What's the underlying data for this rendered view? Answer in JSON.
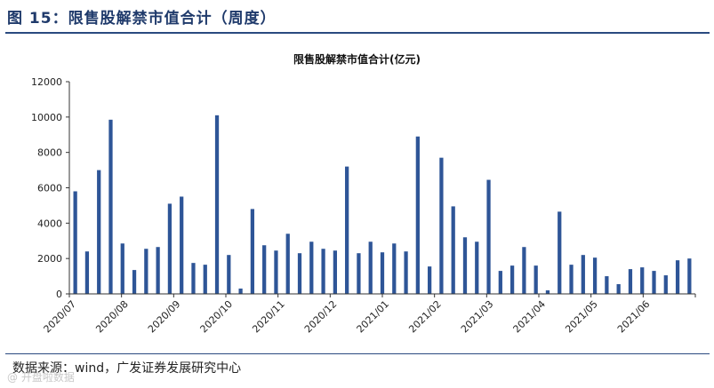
{
  "figure_title": "图 15：限售股解禁市值合计（周度）",
  "source_text": "数据来源：wind，广发证券发展研究中心",
  "watermark": "@ 开盘啦数据",
  "colors": {
    "bar": "#2e5597",
    "title": "#1f3a6b",
    "rule": "#2a4a80"
  },
  "chart_data": {
    "type": "bar",
    "title": "限售股解禁市值合计(亿元)",
    "xlabel": "",
    "ylabel": "",
    "ylim": [
      0,
      12000
    ],
    "yticks": [
      0,
      2000,
      4000,
      6000,
      8000,
      10000,
      12000
    ],
    "grid": false,
    "legend": "none",
    "month_labels": [
      "2020/07",
      "2020/08",
      "2020/09",
      "2020/10",
      "2020/11",
      "2020/12",
      "2021/01",
      "2021/02",
      "2021/03",
      "2021/04",
      "2021/05",
      "2021/06"
    ],
    "values": [
      5800,
      2400,
      7000,
      9850,
      2850,
      1350,
      2550,
      2650,
      5100,
      5500,
      1750,
      1650,
      10100,
      2200,
      300,
      4800,
      2750,
      2450,
      3400,
      2300,
      2950,
      2550,
      2450,
      7200,
      2300,
      2950,
      2350,
      2850,
      2400,
      8900,
      1550,
      7700,
      4950,
      3200,
      2950,
      6450,
      1300,
      1600,
      2650,
      1600,
      200,
      4650,
      1650,
      2200,
      2050,
      1000,
      550,
      1400,
      1500,
      1300,
      1050,
      1900,
      2000
    ]
  }
}
